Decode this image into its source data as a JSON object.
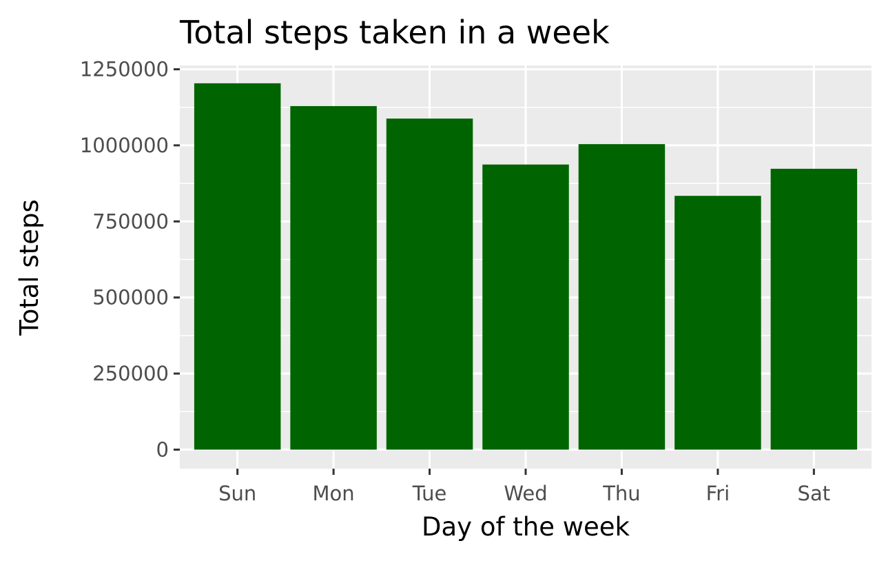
{
  "chart_data": {
    "type": "bar",
    "title": "Total steps taken in a week",
    "xlabel": "Day of the week",
    "ylabel": "Total steps",
    "categories": [
      "Sun",
      "Mon",
      "Tue",
      "Wed",
      "Thu",
      "Fri",
      "Sat"
    ],
    "values": [
      1204000,
      1129000,
      1088000,
      937000,
      1004000,
      834000,
      923000
    ],
    "ylim": [
      -62500,
      1262500
    ],
    "yticks": [
      0,
      250000,
      500000,
      750000,
      1000000,
      1250000
    ],
    "ytick_labels": [
      "0",
      "250000",
      "500000",
      "750000",
      "1000000",
      "1250000"
    ],
    "grid": true,
    "legend": "none",
    "colors": {
      "bar": "#006400",
      "panel": "#ebebeb",
      "grid": "#ffffff"
    }
  }
}
